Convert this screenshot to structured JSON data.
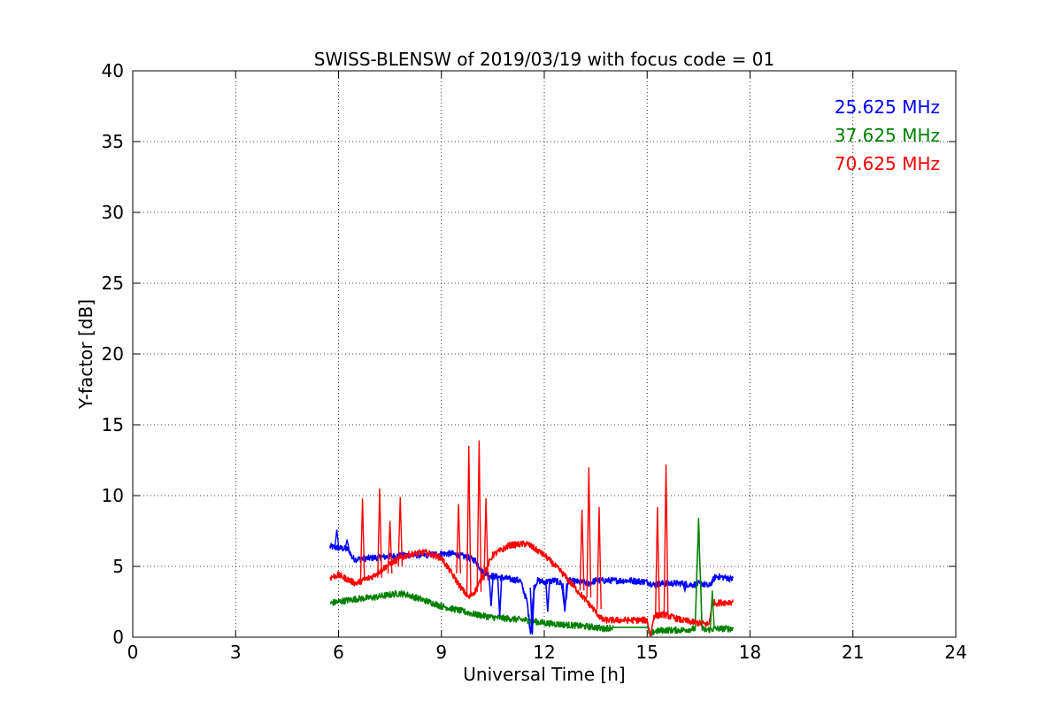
{
  "chart_data": {
    "type": "line",
    "title": "SWISS-BLENSW of 2019/03/19 with focus code = 01",
    "xlabel": "Universal Time [h]",
    "ylabel": "Y-factor [dB]",
    "xlim": [
      0,
      24
    ],
    "ylim": [
      0,
      40
    ],
    "xticks": [
      0,
      3,
      6,
      9,
      12,
      15,
      18,
      21,
      24
    ],
    "yticks": [
      0,
      5,
      10,
      15,
      20,
      25,
      30,
      35,
      40
    ],
    "grid": true,
    "legend_position": "top-right",
    "series": [
      {
        "name": "25.625 MHz",
        "color": "#0000ff",
        "x": [
          5.75,
          6.0,
          6.3,
          6.4,
          6.5,
          7.0,
          7.5,
          8.0,
          8.5,
          9.0,
          9.3,
          9.5,
          9.8,
          10.0,
          10.2,
          10.5,
          10.8,
          11.0,
          11.3,
          11.5,
          11.6,
          11.7,
          11.8,
          12.0,
          12.3,
          12.5,
          12.6,
          12.7,
          13.0,
          13.3,
          13.5,
          13.7,
          14.0,
          14.5,
          15.0,
          15.2,
          15.5,
          16.0,
          16.3,
          16.6,
          16.8,
          17.0,
          17.3,
          17.5
        ],
        "y": [
          6.4,
          6.3,
          6.2,
          5.6,
          5.5,
          5.6,
          5.7,
          5.8,
          5.8,
          5.9,
          5.9,
          5.8,
          5.6,
          5.4,
          4.6,
          4.3,
          4.2,
          4.1,
          4.0,
          2.5,
          0.3,
          3.5,
          4.0,
          3.9,
          4.0,
          3.8,
          2.0,
          4.0,
          3.9,
          3.8,
          4.0,
          4.0,
          4.0,
          4.0,
          3.9,
          3.7,
          3.8,
          3.8,
          3.7,
          3.8,
          3.6,
          4.3,
          4.2,
          4.1
        ]
      },
      {
        "name": "37.625 MHz",
        "color": "#008000",
        "x": [
          5.75,
          6.0,
          6.5,
          7.0,
          7.5,
          7.8,
          8.0,
          8.5,
          9.0,
          9.5,
          10.0,
          10.5,
          11.0,
          11.5,
          12.0,
          12.5,
          13.0,
          13.5,
          13.7,
          14.0,
          15.0,
          15.1,
          15.2,
          15.5,
          16.0,
          16.4,
          16.5,
          16.6,
          16.7,
          17.0,
          17.5
        ],
        "y": [
          2.4,
          2.5,
          2.7,
          2.8,
          3.0,
          3.1,
          3.0,
          2.6,
          2.2,
          1.9,
          1.6,
          1.4,
          1.3,
          1.2,
          1.0,
          0.9,
          0.8,
          0.7,
          0.6,
          0.7,
          0.7,
          0.1,
          0.4,
          0.5,
          0.5,
          0.6,
          8.2,
          0.6,
          0.5,
          0.6,
          0.6
        ]
      },
      {
        "name": "70.625 MHz",
        "color": "#ff0000",
        "x": [
          5.75,
          6.0,
          6.5,
          7.0,
          7.5,
          8.0,
          8.5,
          9.0,
          9.3,
          9.6,
          9.8,
          10.0,
          10.2,
          10.5,
          11.0,
          11.5,
          12.0,
          12.5,
          13.0,
          13.5,
          13.7,
          14.0,
          14.5,
          15.0,
          15.1,
          15.2,
          15.5,
          16.0,
          16.5,
          16.8,
          16.9,
          17.0,
          17.5
        ],
        "y": [
          4.2,
          4.4,
          3.8,
          4.3,
          5.2,
          5.8,
          6.0,
          5.6,
          4.5,
          3.4,
          2.8,
          3.3,
          4.3,
          5.8,
          6.5,
          6.6,
          5.8,
          4.6,
          3.2,
          1.8,
          1.2,
          1.2,
          1.2,
          1.2,
          0.1,
          1.5,
          1.6,
          1.2,
          1.0,
          0.9,
          2.5,
          2.4,
          2.5
        ]
      }
    ],
    "spikes": [
      {
        "series": 2,
        "x": 6.7,
        "base": 4.0,
        "peak": 9.8
      },
      {
        "series": 2,
        "x": 7.2,
        "base": 4.2,
        "peak": 10.5
      },
      {
        "series": 2,
        "x": 7.5,
        "base": 4.5,
        "peak": 8.2
      },
      {
        "series": 2,
        "x": 7.8,
        "base": 5.0,
        "peak": 9.9
      },
      {
        "series": 2,
        "x": 9.5,
        "base": 4.5,
        "peak": 9.4
      },
      {
        "series": 2,
        "x": 9.8,
        "base": 3.0,
        "peak": 13.5
      },
      {
        "series": 2,
        "x": 10.1,
        "base": 3.2,
        "peak": 13.9
      },
      {
        "series": 2,
        "x": 10.3,
        "base": 4.0,
        "peak": 9.8
      },
      {
        "series": 2,
        "x": 13.1,
        "base": 3.3,
        "peak": 9.0
      },
      {
        "series": 2,
        "x": 13.3,
        "base": 2.8,
        "peak": 12.0
      },
      {
        "series": 2,
        "x": 13.6,
        "base": 2.0,
        "peak": 9.2
      },
      {
        "series": 2,
        "x": 15.3,
        "base": 1.5,
        "peak": 9.2
      },
      {
        "series": 2,
        "x": 15.55,
        "base": 1.6,
        "peak": 12.2
      },
      {
        "series": 0,
        "x": 5.95,
        "base": 6.3,
        "peak": 7.6
      },
      {
        "series": 0,
        "x": 6.25,
        "base": 6.2,
        "peak": 6.9
      },
      {
        "series": 1,
        "x": 16.9,
        "base": 0.6,
        "peak": 3.3
      }
    ],
    "dips": [
      {
        "series": 0,
        "x": 10.45,
        "base": 4.3,
        "low": 2.2
      },
      {
        "series": 0,
        "x": 10.7,
        "base": 4.2,
        "low": 1.5
      },
      {
        "series": 0,
        "x": 11.65,
        "base": 3.5,
        "low": 0.2
      },
      {
        "series": 0,
        "x": 12.1,
        "base": 4.0,
        "low": 1.8
      },
      {
        "series": 0,
        "x": 12.6,
        "base": 3.8,
        "low": 1.8
      },
      {
        "series": 0,
        "x": 16.1,
        "base": 3.8,
        "low": 3.3
      }
    ]
  }
}
